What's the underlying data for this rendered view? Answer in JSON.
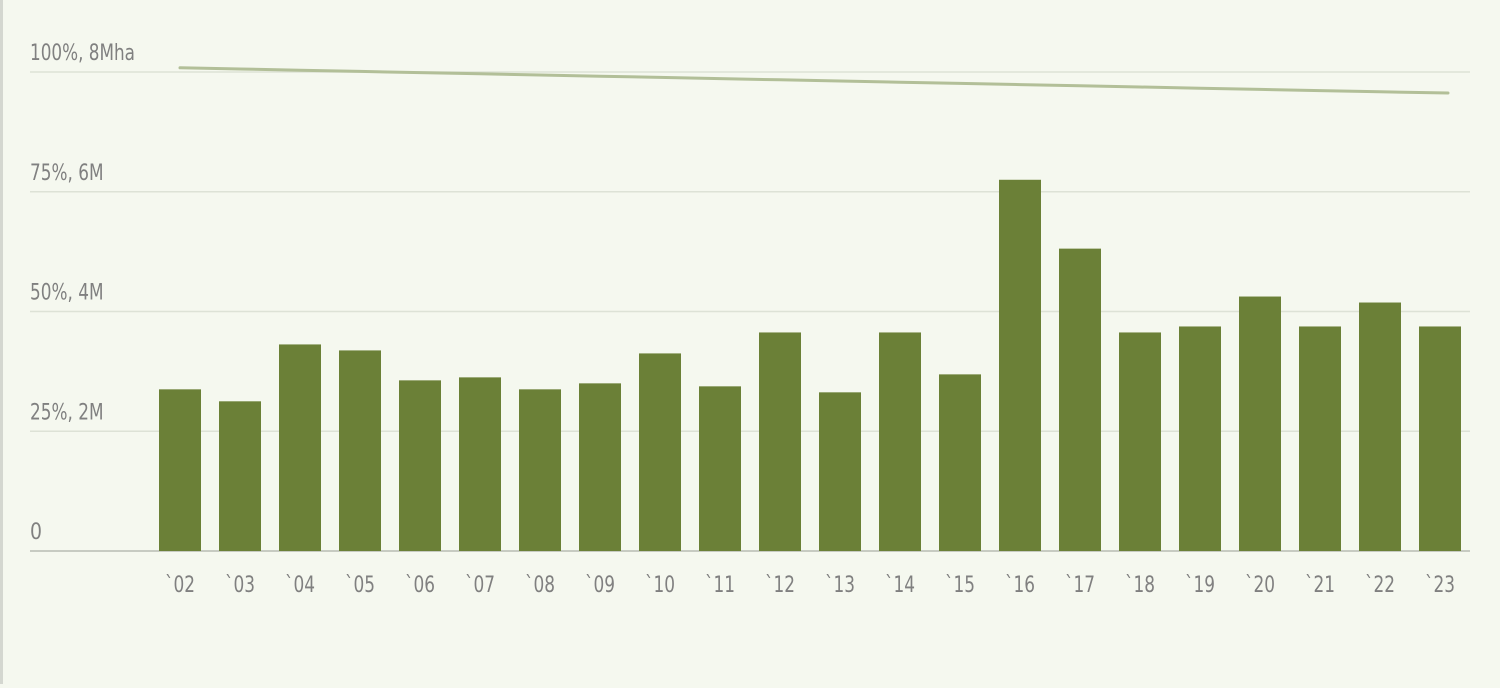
{
  "chart_data": {
    "type": "bar",
    "title": "",
    "xlabel": "",
    "ylabel": "",
    "categories": [
      "`02",
      "`03",
      "`04",
      "`05",
      "`06",
      "`07",
      "`08",
      "`09",
      "`10",
      "`11",
      "`12",
      "`13",
      "`14",
      "`15",
      "`16",
      "`17",
      "`18",
      "`19",
      "`20",
      "`21",
      "`22",
      "`23"
    ],
    "series": [
      {
        "values": [
          2.7,
          2.5,
          3.45,
          3.35,
          2.85,
          2.9,
          2.7,
          2.8,
          3.3,
          2.75,
          3.65,
          2.65,
          3.65,
          2.95,
          6.2,
          5.05,
          3.65,
          3.75,
          4.25,
          3.75,
          4.15,
          3.75
        ]
      },
      {
        "type": "line",
        "values": [
          8.07,
          8.05,
          8.03,
          8.01,
          7.99,
          7.97,
          7.95,
          7.93,
          7.91,
          7.89,
          7.87,
          7.85,
          7.83,
          7.81,
          7.79,
          7.77,
          7.75,
          7.73,
          7.71,
          7.69,
          7.67,
          7.65
        ]
      }
    ],
    "y_tick_labels": [
      "0",
      "25%, 2M",
      "50%, 4M",
      "75%, 6M",
      "100%, 8Mha"
    ],
    "y_tick_values": [
      0,
      2,
      4,
      6,
      8
    ],
    "ylim": [
      0,
      8
    ],
    "grid": true,
    "legend": "none",
    "colors": {
      "bar": "#6b8037",
      "line": "#b2bf98",
      "grid": "#dde2d6",
      "axis": "#c7cbc2",
      "tick_text": "#808080",
      "background": "#f5f8ef"
    }
  }
}
